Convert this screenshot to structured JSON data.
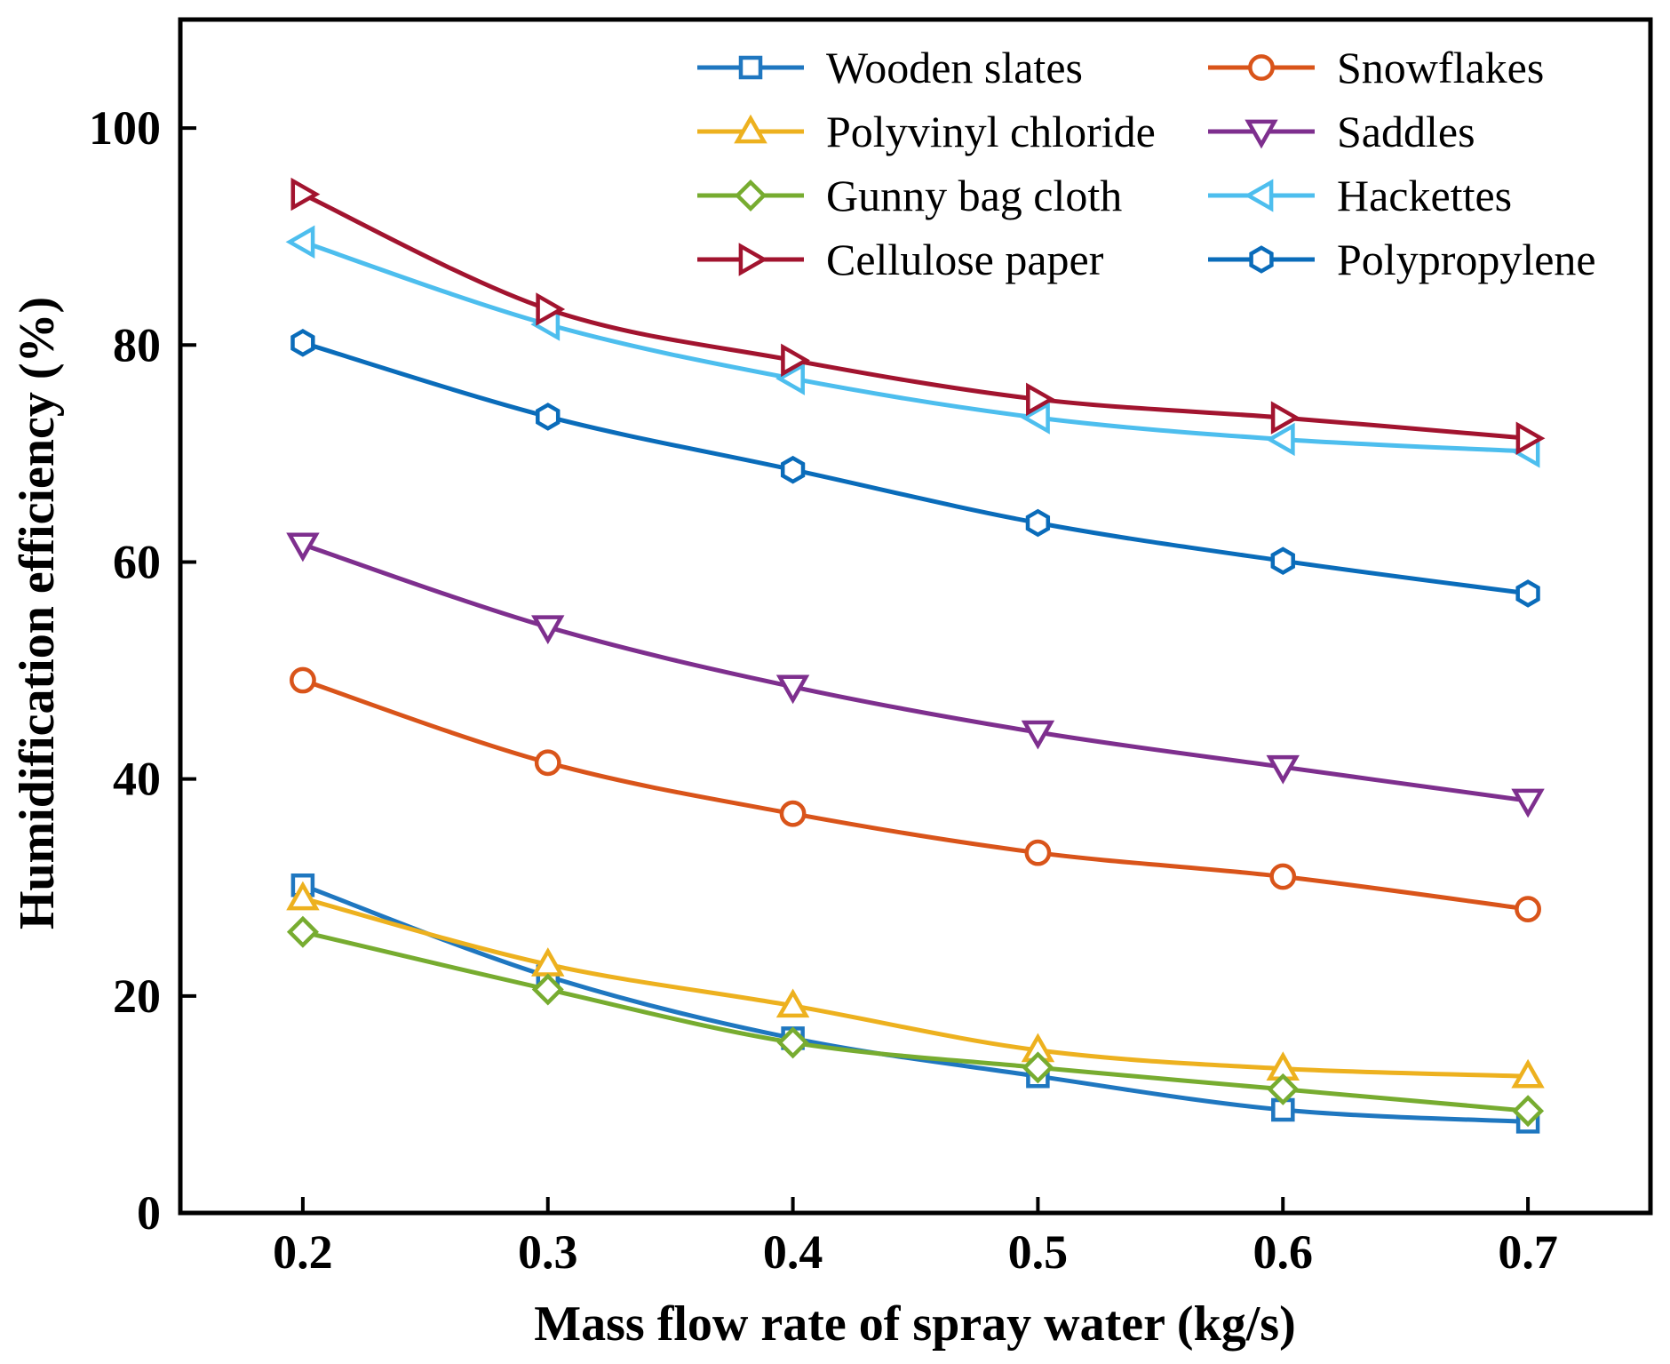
{
  "chart_data": {
    "type": "line",
    "title": "",
    "xlabel": "Mass flow rate of spray water (kg/s)",
    "ylabel": "Humidification efficiency (%)",
    "x": [
      0.2,
      0.3,
      0.4,
      0.5,
      0.6,
      0.7
    ],
    "xticks": [
      0.2,
      0.3,
      0.4,
      0.5,
      0.6,
      0.7
    ],
    "xtick_labels": [
      "0.2",
      "0.3",
      "0.4",
      "0.5",
      "0.6",
      "0.7"
    ],
    "xlim": [
      0.15,
      0.75
    ],
    "yticks": [
      0,
      20,
      40,
      60,
      80,
      100
    ],
    "ytick_labels": [
      "0",
      "20",
      "40",
      "60",
      "80",
      "100"
    ],
    "ylim": [
      0,
      110
    ],
    "grid": false,
    "legend_position": "top-right",
    "legend_columns": 2,
    "series": [
      {
        "name": "Wooden slates",
        "color": "#1F77C0",
        "marker": "square",
        "values": [
          30.2,
          21.8,
          16.1,
          12.6,
          9.5,
          8.4
        ]
      },
      {
        "name": "Snowflakes",
        "color": "#D9541A",
        "marker": "circle",
        "values": [
          49.1,
          41.5,
          36.8,
          33.2,
          31.0,
          28.0
        ]
      },
      {
        "name": "Polyvinyl chloride",
        "color": "#EDB11F",
        "marker": "triangle-up",
        "values": [
          29.0,
          22.9,
          19.1,
          15.0,
          13.3,
          12.6
        ]
      },
      {
        "name": "Saddles",
        "color": "#7E2F8E",
        "marker": "triangle-down",
        "values": [
          61.6,
          54.0,
          48.5,
          44.3,
          41.1,
          38.0
        ]
      },
      {
        "name": "Gunny bag cloth",
        "color": "#77AC30",
        "marker": "diamond",
        "values": [
          25.9,
          20.6,
          15.7,
          13.4,
          11.4,
          9.4
        ]
      },
      {
        "name": "Hackettes",
        "color": "#4DBEEE",
        "marker": "triangle-left",
        "values": [
          89.5,
          81.9,
          76.9,
          73.3,
          71.3,
          70.2
        ]
      },
      {
        "name": "Cellulose paper",
        "color": "#A2142F",
        "marker": "triangle-right",
        "values": [
          93.9,
          83.3,
          78.6,
          75.0,
          73.3,
          71.4
        ]
      },
      {
        "name": "Polypropylene",
        "color": "#0A6CBA",
        "marker": "hexagon",
        "values": [
          80.2,
          73.4,
          68.5,
          63.6,
          60.1,
          57.1
        ]
      }
    ]
  }
}
